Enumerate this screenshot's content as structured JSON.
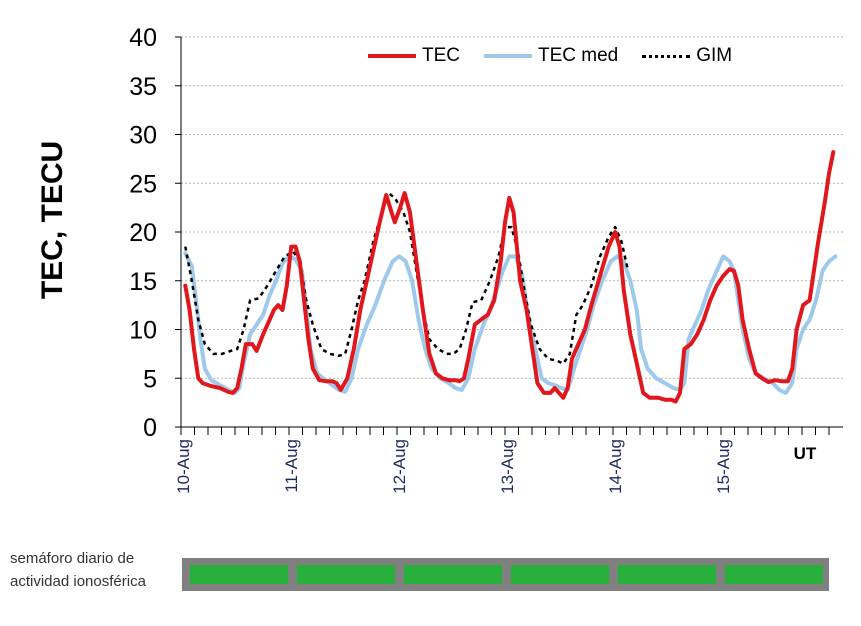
{
  "chart_data": {
    "type": "line",
    "ylabel": "TEC, TECU",
    "xlabel": "UT",
    "ylim": [
      0,
      40
    ],
    "yticks": [
      0,
      5,
      10,
      15,
      20,
      25,
      30,
      35,
      40
    ],
    "grid": "horizontal dotted",
    "legend_position": "top-right",
    "x_unit": "day offset from 10-Aug 00 UT",
    "xlim": [
      0,
      6
    ],
    "date_labels": [
      {
        "x": 0,
        "label": "10-Aug"
      },
      {
        "x": 1,
        "label": "11-Aug"
      },
      {
        "x": 2,
        "label": "12-Aug"
      },
      {
        "x": 3,
        "label": "13-Aug"
      },
      {
        "x": 4,
        "label": "14-Aug"
      },
      {
        "x": 5,
        "label": "15-Aug"
      }
    ],
    "series": [
      {
        "name": "TEC",
        "color": "#e0171c",
        "style": "solid",
        "points": [
          [
            0.04,
            14.5
          ],
          [
            0.08,
            12
          ],
          [
            0.12,
            8
          ],
          [
            0.16,
            5
          ],
          [
            0.2,
            4.5
          ],
          [
            0.28,
            4.2
          ],
          [
            0.36,
            4
          ],
          [
            0.44,
            3.6
          ],
          [
            0.48,
            3.5
          ],
          [
            0.52,
            4
          ],
          [
            0.56,
            6
          ],
          [
            0.6,
            8.5
          ],
          [
            0.66,
            8.5
          ],
          [
            0.7,
            7.8
          ],
          [
            0.76,
            9.5
          ],
          [
            0.82,
            11
          ],
          [
            0.86,
            12
          ],
          [
            0.9,
            12.5
          ],
          [
            0.94,
            12
          ],
          [
            0.98,
            14.5
          ],
          [
            1.02,
            18.5
          ],
          [
            1.06,
            18.5
          ],
          [
            1.1,
            17
          ],
          [
            1.14,
            13
          ],
          [
            1.18,
            9
          ],
          [
            1.22,
            6
          ],
          [
            1.28,
            4.8
          ],
          [
            1.34,
            4.7
          ],
          [
            1.4,
            4.7
          ],
          [
            1.44,
            4.5
          ],
          [
            1.48,
            3.8
          ],
          [
            1.54,
            5
          ],
          [
            1.6,
            8
          ],
          [
            1.66,
            12
          ],
          [
            1.72,
            15
          ],
          [
            1.78,
            18
          ],
          [
            1.84,
            21
          ],
          [
            1.9,
            23.8
          ],
          [
            1.95,
            22
          ],
          [
            1.98,
            21
          ],
          [
            2.03,
            22.5
          ],
          [
            2.07,
            24
          ],
          [
            2.12,
            22
          ],
          [
            2.18,
            17
          ],
          [
            2.24,
            12
          ],
          [
            2.3,
            7.5
          ],
          [
            2.36,
            5.5
          ],
          [
            2.42,
            5
          ],
          [
            2.48,
            4.8
          ],
          [
            2.54,
            4.8
          ],
          [
            2.58,
            4.7
          ],
          [
            2.62,
            5
          ],
          [
            2.66,
            7
          ],
          [
            2.72,
            10.5
          ],
          [
            2.8,
            11.2
          ],
          [
            2.84,
            11.5
          ],
          [
            2.9,
            13
          ],
          [
            2.96,
            17
          ],
          [
            3.0,
            21
          ],
          [
            3.04,
            23.5
          ],
          [
            3.08,
            22
          ],
          [
            3.14,
            15
          ],
          [
            3.2,
            12
          ],
          [
            3.26,
            7.5
          ],
          [
            3.3,
            4.5
          ],
          [
            3.36,
            3.5
          ],
          [
            3.42,
            3.5
          ],
          [
            3.46,
            4
          ],
          [
            3.5,
            3.5
          ],
          [
            3.54,
            3
          ],
          [
            3.58,
            4
          ],
          [
            3.62,
            7
          ],
          [
            3.68,
            8.5
          ],
          [
            3.74,
            10
          ],
          [
            3.8,
            12.5
          ],
          [
            3.88,
            15.5
          ],
          [
            3.96,
            18.5
          ],
          [
            4.02,
            20
          ],
          [
            4.06,
            18.5
          ],
          [
            4.1,
            14
          ],
          [
            4.16,
            9.5
          ],
          [
            4.22,
            6.5
          ],
          [
            4.28,
            3.5
          ],
          [
            4.34,
            3
          ],
          [
            4.42,
            3
          ],
          [
            4.48,
            2.8
          ],
          [
            4.54,
            2.8
          ],
          [
            4.58,
            2.6
          ],
          [
            4.62,
            3.5
          ],
          [
            4.66,
            8
          ],
          [
            4.72,
            8.5
          ],
          [
            4.78,
            9.5
          ],
          [
            4.84,
            11
          ],
          [
            4.9,
            13
          ],
          [
            4.96,
            14.5
          ],
          [
            5.02,
            15.5
          ],
          [
            5.08,
            16.2
          ],
          [
            5.12,
            16
          ],
          [
            5.16,
            14.5
          ],
          [
            5.2,
            11
          ],
          [
            5.26,
            8
          ],
          [
            5.32,
            5.5
          ],
          [
            5.38,
            5
          ],
          [
            5.44,
            4.6
          ],
          [
            5.5,
            4.8
          ],
          [
            5.56,
            4.7
          ],
          [
            5.62,
            4.7
          ],
          [
            5.66,
            6
          ],
          [
            5.7,
            10
          ],
          [
            5.76,
            12.5
          ],
          [
            5.82,
            13
          ],
          [
            5.86,
            16
          ],
          [
            5.9,
            19
          ],
          [
            5.96,
            23
          ],
          [
            6.0,
            26
          ],
          [
            6.04,
            28.2
          ]
        ]
      },
      {
        "name": "TEC med",
        "color": "#9ec9ea",
        "style": "solid",
        "points": [
          [
            0.04,
            17.8
          ],
          [
            0.1,
            16.5
          ],
          [
            0.14,
            13
          ],
          [
            0.18,
            9
          ],
          [
            0.22,
            6
          ],
          [
            0.28,
            4.8
          ],
          [
            0.36,
            4.3
          ],
          [
            0.44,
            3.8
          ],
          [
            0.5,
            3.5
          ],
          [
            0.54,
            4
          ],
          [
            0.58,
            6.5
          ],
          [
            0.64,
            9.5
          ],
          [
            0.7,
            10.5
          ],
          [
            0.76,
            11.5
          ],
          [
            0.82,
            13.5
          ],
          [
            0.88,
            15
          ],
          [
            0.94,
            16.8
          ],
          [
            1.0,
            17.5
          ],
          [
            1.06,
            17.2
          ],
          [
            1.12,
            16
          ],
          [
            1.16,
            12
          ],
          [
            1.2,
            8
          ],
          [
            1.26,
            5.5
          ],
          [
            1.34,
            4.8
          ],
          [
            1.4,
            4.3
          ],
          [
            1.46,
            3.8
          ],
          [
            1.52,
            3.6
          ],
          [
            1.58,
            5
          ],
          [
            1.64,
            8
          ],
          [
            1.72,
            10.5
          ],
          [
            1.8,
            12.5
          ],
          [
            1.88,
            15
          ],
          [
            1.96,
            17
          ],
          [
            2.02,
            17.5
          ],
          [
            2.08,
            17
          ],
          [
            2.14,
            15
          ],
          [
            2.2,
            11
          ],
          [
            2.26,
            8
          ],
          [
            2.32,
            6
          ],
          [
            2.4,
            5
          ],
          [
            2.48,
            4.5
          ],
          [
            2.54,
            4
          ],
          [
            2.6,
            3.8
          ],
          [
            2.66,
            5
          ],
          [
            2.72,
            8
          ],
          [
            2.8,
            10.5
          ],
          [
            2.86,
            12
          ],
          [
            2.92,
            14
          ],
          [
            2.98,
            16
          ],
          [
            3.04,
            17.5
          ],
          [
            3.1,
            17.5
          ],
          [
            3.16,
            15.5
          ],
          [
            3.22,
            11
          ],
          [
            3.28,
            8
          ],
          [
            3.34,
            5
          ],
          [
            3.4,
            4.5
          ],
          [
            3.46,
            4.3
          ],
          [
            3.52,
            4
          ],
          [
            3.58,
            3.8
          ],
          [
            3.64,
            6
          ],
          [
            3.7,
            8
          ],
          [
            3.76,
            10
          ],
          [
            3.82,
            12.5
          ],
          [
            3.9,
            15
          ],
          [
            3.98,
            17
          ],
          [
            4.04,
            17.5
          ],
          [
            4.1,
            17
          ],
          [
            4.16,
            15
          ],
          [
            4.22,
            12
          ],
          [
            4.26,
            8
          ],
          [
            4.32,
            6
          ],
          [
            4.4,
            5
          ],
          [
            4.48,
            4.5
          ],
          [
            4.56,
            4
          ],
          [
            4.62,
            3.8
          ],
          [
            4.66,
            4.5
          ],
          [
            4.7,
            9
          ],
          [
            4.76,
            10.5
          ],
          [
            4.82,
            12
          ],
          [
            4.88,
            14
          ],
          [
            4.96,
            16
          ],
          [
            5.02,
            17.5
          ],
          [
            5.08,
            17
          ],
          [
            5.12,
            16
          ],
          [
            5.16,
            13
          ],
          [
            5.2,
            10
          ],
          [
            5.26,
            7
          ],
          [
            5.32,
            5.5
          ],
          [
            5.4,
            5
          ],
          [
            5.48,
            4.5
          ],
          [
            5.54,
            3.8
          ],
          [
            5.6,
            3.5
          ],
          [
            5.66,
            4.5
          ],
          [
            5.7,
            8
          ],
          [
            5.76,
            10
          ],
          [
            5.82,
            11
          ],
          [
            5.88,
            13
          ],
          [
            5.94,
            16
          ],
          [
            6.0,
            17
          ],
          [
            6.06,
            17.5
          ]
        ]
      },
      {
        "name": "GIM",
        "color": "#000000",
        "style": "dotted",
        "points": [
          [
            0.04,
            18.5
          ],
          [
            0.1,
            15
          ],
          [
            0.16,
            11
          ],
          [
            0.22,
            8.5
          ],
          [
            0.3,
            7.5
          ],
          [
            0.38,
            7.5
          ],
          [
            0.46,
            7.8
          ],
          [
            0.52,
            8
          ],
          [
            0.58,
            10
          ],
          [
            0.64,
            13
          ],
          [
            0.72,
            13.2
          ],
          [
            0.8,
            14.5
          ],
          [
            0.88,
            16
          ],
          [
            0.96,
            17.5
          ],
          [
            1.04,
            18
          ],
          [
            1.1,
            17
          ],
          [
            1.16,
            13
          ],
          [
            1.22,
            10.5
          ],
          [
            1.3,
            8
          ],
          [
            1.38,
            7.5
          ],
          [
            1.46,
            7.3
          ],
          [
            1.52,
            7.5
          ],
          [
            1.58,
            10
          ],
          [
            1.64,
            13
          ],
          [
            1.7,
            15
          ],
          [
            1.78,
            19
          ],
          [
            1.86,
            22
          ],
          [
            1.92,
            24
          ],
          [
            1.98,
            23.5
          ],
          [
            2.06,
            22
          ],
          [
            2.12,
            20
          ],
          [
            2.18,
            16
          ],
          [
            2.24,
            12
          ],
          [
            2.3,
            9
          ],
          [
            2.38,
            8
          ],
          [
            2.46,
            7.5
          ],
          [
            2.52,
            7.5
          ],
          [
            2.58,
            8
          ],
          [
            2.64,
            10
          ],
          [
            2.7,
            12.8
          ],
          [
            2.78,
            13
          ],
          [
            2.86,
            15
          ],
          [
            2.94,
            17.5
          ],
          [
            3.0,
            20.5
          ],
          [
            3.06,
            20.5
          ],
          [
            3.12,
            18
          ],
          [
            3.18,
            14
          ],
          [
            3.24,
            10.5
          ],
          [
            3.32,
            8
          ],
          [
            3.4,
            7
          ],
          [
            3.48,
            6.8
          ],
          [
            3.54,
            6.5
          ],
          [
            3.6,
            7.5
          ],
          [
            3.66,
            11.5
          ],
          [
            3.72,
            12.5
          ],
          [
            3.8,
            14.5
          ],
          [
            3.88,
            17.5
          ],
          [
            3.96,
            19.5
          ],
          [
            4.02,
            20.5
          ],
          [
            4.08,
            19
          ],
          [
            4.14,
            16
          ]
        ]
      }
    ]
  },
  "semaforo": {
    "label_line1": "semáforo diario de",
    "label_line2": "actividad ionosférica",
    "cells": [
      "#27b03b",
      "#27b03b",
      "#27b03b",
      "#27b03b",
      "#27b03b",
      "#27b03b"
    ]
  }
}
